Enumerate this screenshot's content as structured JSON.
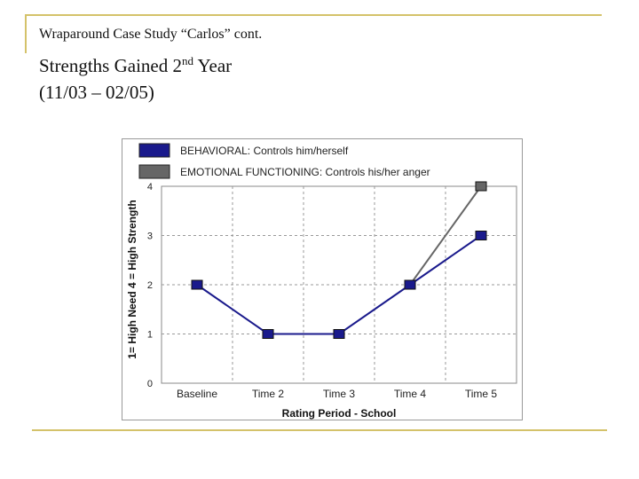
{
  "slide": {
    "subtitle": "Wraparound Case Study “Carlos” cont.",
    "title_main": "Strengths Gained 2",
    "title_sup": "nd",
    "title_rest": " Year",
    "date_range": "(11/03 – 02/05)"
  },
  "chart_data": {
    "type": "line",
    "categories": [
      "Baseline",
      "Time 2",
      "Time 3",
      "Time 4",
      "Time 5"
    ],
    "series": [
      {
        "name": "BEHAVIORAL: Controls him/herself",
        "values": [
          2,
          1,
          1,
          2,
          3
        ],
        "color": "#1a1a8c"
      },
      {
        "name": "EMOTIONAL FUNCTIONING: Controls his/her anger",
        "values": [
          null,
          null,
          null,
          2,
          4
        ],
        "color": "#666666"
      }
    ],
    "xlabel": "Rating Period - School",
    "ylabel": "1= High Need 4 = High Strength",
    "ylim": [
      0,
      4
    ],
    "yticks": [
      "0",
      "1",
      "2",
      "3",
      "4"
    ],
    "grid": true,
    "legend": "top"
  }
}
